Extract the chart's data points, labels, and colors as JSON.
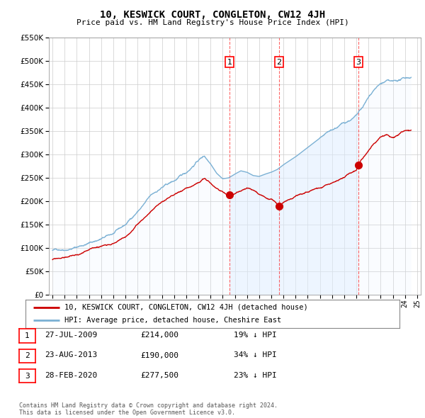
{
  "title": "10, KESWICK COURT, CONGLETON, CW12 4JH",
  "subtitle": "Price paid vs. HM Land Registry's House Price Index (HPI)",
  "legend_line1": "10, KESWICK COURT, CONGLETON, CW12 4JH (detached house)",
  "legend_line2": "HPI: Average price, detached house, Cheshire East",
  "footnote": "Contains HM Land Registry data © Crown copyright and database right 2024.\nThis data is licensed under the Open Government Licence v3.0.",
  "sale_color": "#cc0000",
  "hpi_color": "#7ab0d4",
  "hpi_fill_color": "#deeeff",
  "ylim": [
    0,
    550000
  ],
  "yticks": [
    0,
    50000,
    100000,
    150000,
    200000,
    250000,
    300000,
    350000,
    400000,
    450000,
    500000,
    550000
  ],
  "transactions": [
    {
      "id": 1,
      "date": "27-JUL-2009",
      "date_float": 2009.57,
      "price": 214000,
      "pct": "19%",
      "dir": "↓"
    },
    {
      "id": 2,
      "date": "23-AUG-2013",
      "date_float": 2013.64,
      "price": 190000,
      "pct": "34%",
      "dir": "↓"
    },
    {
      "id": 3,
      "date": "28-FEB-2020",
      "date_float": 2020.16,
      "price": 277500,
      "pct": "23%",
      "dir": "↓"
    }
  ],
  "background_color": "#ffffff",
  "grid_color": "#cccccc",
  "table_rows": [
    [
      "1",
      "27-JUL-2009",
      "£214,000",
      "19% ↓ HPI"
    ],
    [
      "2",
      "23-AUG-2013",
      "£190,000",
      "34% ↓ HPI"
    ],
    [
      "3",
      "28-FEB-2020",
      "£277,500",
      "23% ↓ HPI"
    ]
  ]
}
